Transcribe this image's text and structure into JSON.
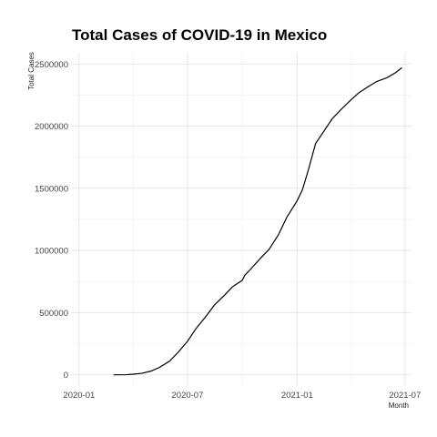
{
  "chart_data": {
    "type": "line",
    "title": "Total Cases of COVID-19 in Mexico",
    "xlabel": "Month",
    "ylabel": "Total Cases",
    "xlim": [
      "2019-12-20",
      "2021-07-12"
    ],
    "ylim": [
      -90000,
      2590000
    ],
    "x_ticks": [
      "2020-01-01",
      "2020-07-01",
      "2021-01-01",
      "2021-07-01"
    ],
    "x_tick_labels": [
      "2020-01",
      "2020-07",
      "2021-01",
      "2021-07"
    ],
    "y_ticks": [
      0,
      500000,
      1000000,
      1500000,
      2000000,
      2500000
    ],
    "y_tick_labels": [
      "0",
      "500000",
      "1000000",
      "1500000",
      "2000000",
      "2500000"
    ],
    "grid": true,
    "legend": "none",
    "x": [
      "2020-02-28",
      "2020-03-20",
      "2020-04-01",
      "2020-04-15",
      "2020-05-01",
      "2020-05-15",
      "2020-06-01",
      "2020-06-15",
      "2020-07-01",
      "2020-07-15",
      "2020-08-01",
      "2020-08-15",
      "2020-09-01",
      "2020-09-15",
      "2020-10-01",
      "2020-10-05",
      "2020-10-15",
      "2020-11-01",
      "2020-11-15",
      "2020-12-01",
      "2020-12-15",
      "2021-01-01",
      "2021-01-10",
      "2021-01-20",
      "2021-02-01",
      "2021-02-15",
      "2021-03-01",
      "2021-03-15",
      "2021-04-01",
      "2021-04-15",
      "2021-05-01",
      "2021-05-15",
      "2021-06-01",
      "2021-06-15",
      "2021-06-26"
    ],
    "y": [
      0,
      1000,
      5000,
      12000,
      30000,
      60000,
      110000,
      180000,
      270000,
      370000,
      470000,
      560000,
      640000,
      710000,
      760000,
      800000,
      850000,
      940000,
      1010000,
      1130000,
      1270000,
      1400000,
      1490000,
      1650000,
      1860000,
      1960000,
      2060000,
      2130000,
      2210000,
      2270000,
      2320000,
      2360000,
      2390000,
      2430000,
      2470000
    ]
  }
}
